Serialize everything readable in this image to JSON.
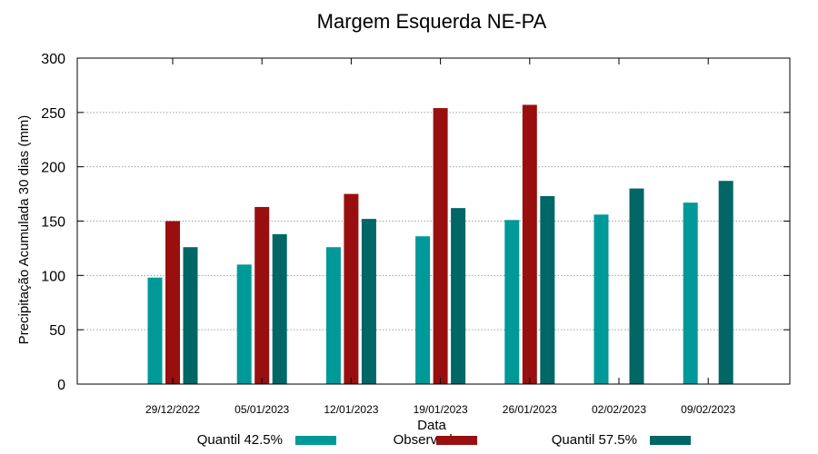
{
  "chart_data": {
    "type": "bar",
    "title": "Margem Esquerda NE-PA",
    "xlabel": "Data",
    "ylabel": "Precipitação Acumulada 30 dias (mm)",
    "ylim": [
      0,
      300
    ],
    "yticks": [
      0,
      50,
      100,
      150,
      200,
      250,
      300
    ],
    "grid": true,
    "legend_position": "bottom",
    "categories": [
      "29/12/2022",
      "05/01/2023",
      "12/01/2023",
      "19/01/2023",
      "26/01/2023",
      "02/02/2023",
      "09/02/2023"
    ],
    "series": [
      {
        "name": "Quantil 42.5%",
        "color": "#009999",
        "values": [
          98,
          110,
          126,
          136,
          151,
          156,
          167
        ]
      },
      {
        "name": "Observado",
        "color": "#990f0f",
        "values": [
          150,
          163,
          175,
          254,
          257,
          null,
          null
        ]
      },
      {
        "name": "Quantil 57.5%",
        "color": "#006666",
        "values": [
          126,
          138,
          152,
          162,
          173,
          180,
          187
        ]
      }
    ]
  }
}
